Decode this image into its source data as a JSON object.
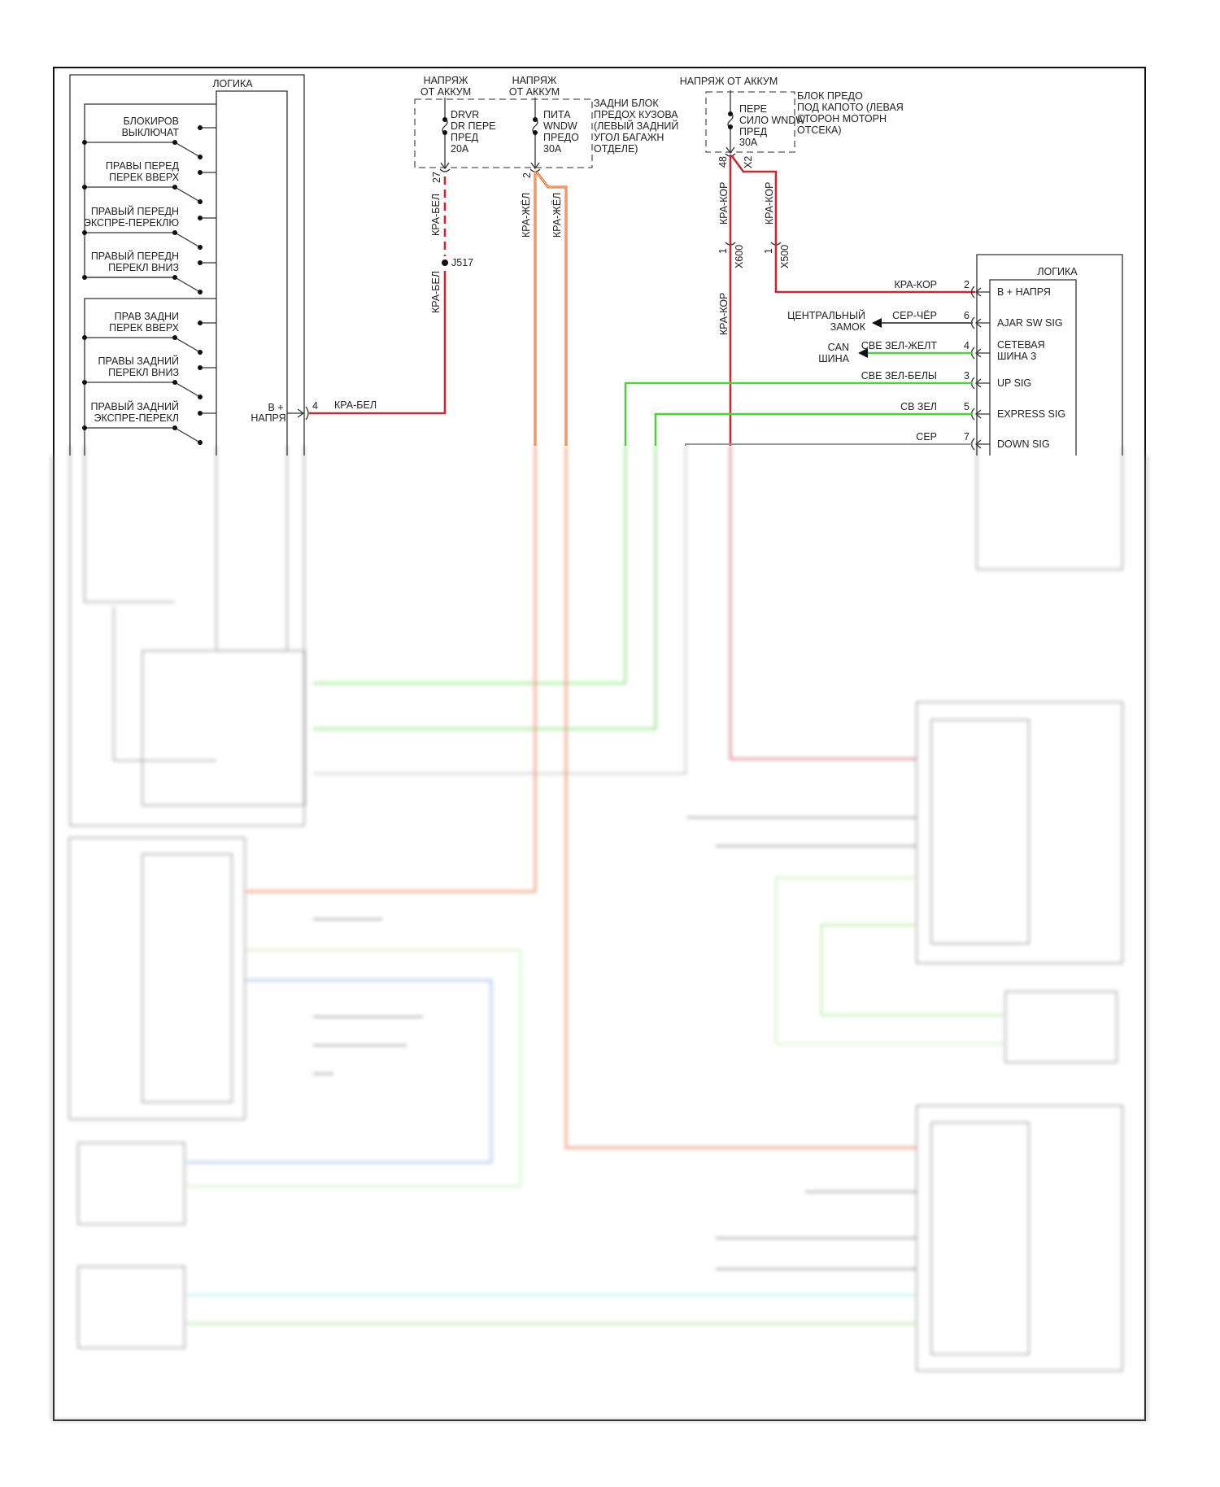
{
  "left_module": {
    "logic_label": "ЛОГИКА",
    "switches": [
      [
        "БЛОКИРОВ",
        "ВЫКЛЮЧАТ"
      ],
      [
        "ПРАВЫ ПЕРЕД",
        "ПЕРЕК ВВЕРХ"
      ],
      [
        "ПРАВЫЙ ПЕРЕДН",
        "ЭКСПРЕ-ПЕРЕКЛЮ"
      ],
      [
        "ПРАВЫЙ ПЕРЕДН",
        "ПЕРЕКЛ ВНИЗ"
      ],
      [
        "ПРАВ ЗАДНИ",
        "ПЕРЕК ВВЕРХ"
      ],
      [
        "ПРАВЫ ЗАДНИЙ",
        "ПЕРЕКЛ ВНИЗ"
      ],
      [
        "ПРАВЫЙ ЗАДНИЙ",
        "ЭКСПРЕ-ПЕРЕКЛ"
      ]
    ],
    "bplus_line1": "В +",
    "bplus_line2": "НАПРЯ",
    "bplus_pin": "4",
    "bplus_wire": "КРА-БЕЛ"
  },
  "rear_fuse_block": {
    "supply1": [
      "НАПРЯЖ",
      "ОТ АККУМ"
    ],
    "supply2": [
      "НАПРЯЖ",
      "ОТ АККУМ"
    ],
    "fuse1": [
      "DRVR",
      "DR ПЕРЕ",
      "ПРЕД",
      "20A"
    ],
    "fuse2": [
      "ПИТА",
      "WNDW",
      "ПРЕДО",
      "30A"
    ],
    "block_label": [
      "ЗАДНИ БЛОК",
      "ПРЕДОХ КУЗОВА",
      "(ЛЕВЫЙ ЗАДНИЙ",
      "УГОЛ БАГАЖН",
      "ОТДЕЛЕ)"
    ],
    "pin1": "27",
    "pin2": "2",
    "wire1": "КРА-БЕЛ",
    "wire1b": "КРА-БЕЛ",
    "splice": "J517",
    "wire2a": "КРА-ЖЁЛ",
    "wire2b": "КРА-ЖЁЛ"
  },
  "front_fuse_block": {
    "supply": "НАПРЯЖ ОТ АККУМ",
    "fuse": [
      "ПЕРЕ",
      "СИЛО WNDW",
      "ПРЕД",
      "30A"
    ],
    "block_label": [
      "БЛОК ПРЕДО",
      "ПОД КАПОТО (ЛЕВАЯ",
      "СТОРОН МОТОРН",
      "ОТСЕКА)"
    ],
    "pin_a": "48",
    "pin_b": "X2",
    "wire_a": "КРА-КОР",
    "wire_b": "КРА-КОР",
    "wire_a2": "КРА-КОР",
    "conn_a_pin": "1",
    "conn_a": "X600",
    "conn_b_pin": "1",
    "conn_b": "X500"
  },
  "right_module": {
    "logic_label": "ЛОГИКА",
    "rows": [
      {
        "label": [
          "B + НАПРЯ"
        ],
        "pin": "2",
        "wire": "КРА-КОР"
      },
      {
        "label": [
          "AJAR SW SIG"
        ],
        "pin": "6",
        "wire": "СЕР-ЧЁР"
      },
      {
        "label": [
          "СЕТЕВАЯ",
          "ШИНА 3"
        ],
        "pin": "4",
        "wire": "СВЕ ЗЕЛ-ЖЕЛТ"
      },
      {
        "label": [
          "UP SIG"
        ],
        "pin": "3",
        "wire": "СВЕ ЗЕЛ-БЕЛЫ"
      },
      {
        "label": [
          "EXPRESS SIG"
        ],
        "pin": "5",
        "wire": "СВ ЗЕЛ"
      },
      {
        "label": [
          "DOWN SIG"
        ],
        "pin": "7",
        "wire": "СЕР"
      }
    ],
    "central_lock": [
      "ЦЕНТРАЛЬНЫЙ",
      "ЗАМОК"
    ],
    "can_bus": [
      "CAN",
      "ШИНА"
    ]
  },
  "wire_colors": {
    "red_white": "#c62a2f",
    "red_yellow": "#e0602a",
    "red_brown": "#c9401f",
    "green": "#4fd13a",
    "grey": "#9a9a9a"
  }
}
